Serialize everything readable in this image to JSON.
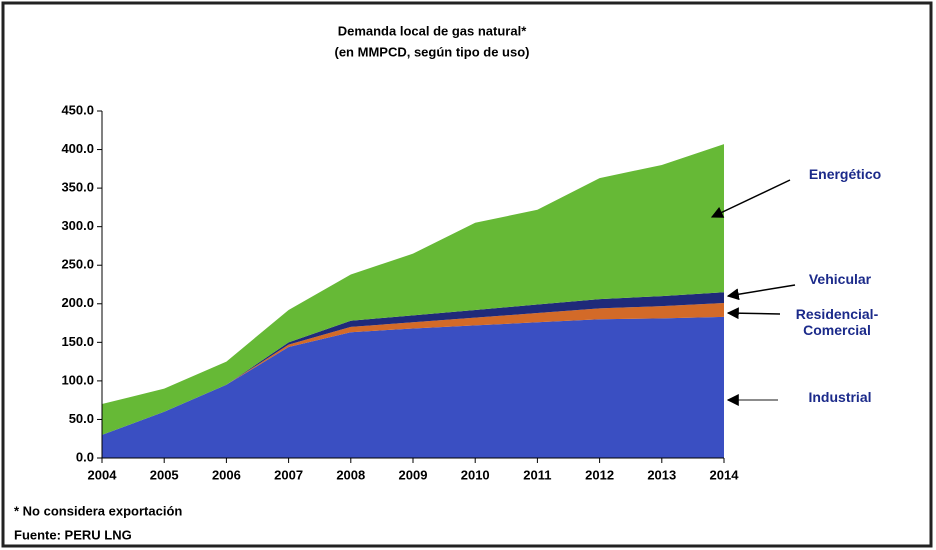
{
  "chart_data": {
    "type": "stacked_area",
    "title": "Demanda local de gas natural*",
    "subtitle": "(en MMPCD, según tipo de uso)",
    "x": [
      2004,
      2005,
      2006,
      2007,
      2008,
      2009,
      2010,
      2011,
      2012,
      2013,
      2014
    ],
    "xlim": [
      2004,
      2014
    ],
    "xticks": [
      2004,
      2005,
      2006,
      2007,
      2008,
      2009,
      2010,
      2011,
      2012,
      2013,
      2014
    ],
    "ylim": [
      0,
      450
    ],
    "yticks": [
      {
        "value": 0,
        "label": "0.0"
      },
      {
        "value": 50,
        "label": "50.0"
      },
      {
        "value": 100,
        "label": "100.0"
      },
      {
        "value": 150,
        "label": "150.0"
      },
      {
        "value": 200,
        "label": "200.0"
      },
      {
        "value": 250,
        "label": "250.0"
      },
      {
        "value": 300,
        "label": "300.0"
      },
      {
        "value": 350,
        "label": "350.0"
      },
      {
        "value": 400,
        "label": "400.0"
      },
      {
        "value": 450,
        "label": "450.0"
      }
    ],
    "grid": false,
    "series": [
      {
        "name": "Industrial",
        "color": "#3a4fc2",
        "values": [
          30,
          60,
          95,
          144,
          163,
          168,
          172,
          176,
          180,
          181,
          183
        ]
      },
      {
        "name": "Residencial-Comercial",
        "color": "#d36a28",
        "values": [
          0,
          0,
          0,
          3,
          7,
          8,
          10,
          12,
          14,
          16,
          18
        ]
      },
      {
        "name": "Vehicular",
        "color": "#1f2a7a",
        "values": [
          0,
          0,
          0,
          3,
          8,
          9,
          10,
          11,
          12,
          13,
          14
        ]
      },
      {
        "name": "Energético",
        "color": "#66b936",
        "values": [
          40,
          30,
          30,
          42,
          60,
          80,
          113,
          123,
          157,
          170,
          192
        ]
      }
    ],
    "notes": [
      "* No considera exportación",
      "Fuente: PERU LNG"
    ]
  }
}
